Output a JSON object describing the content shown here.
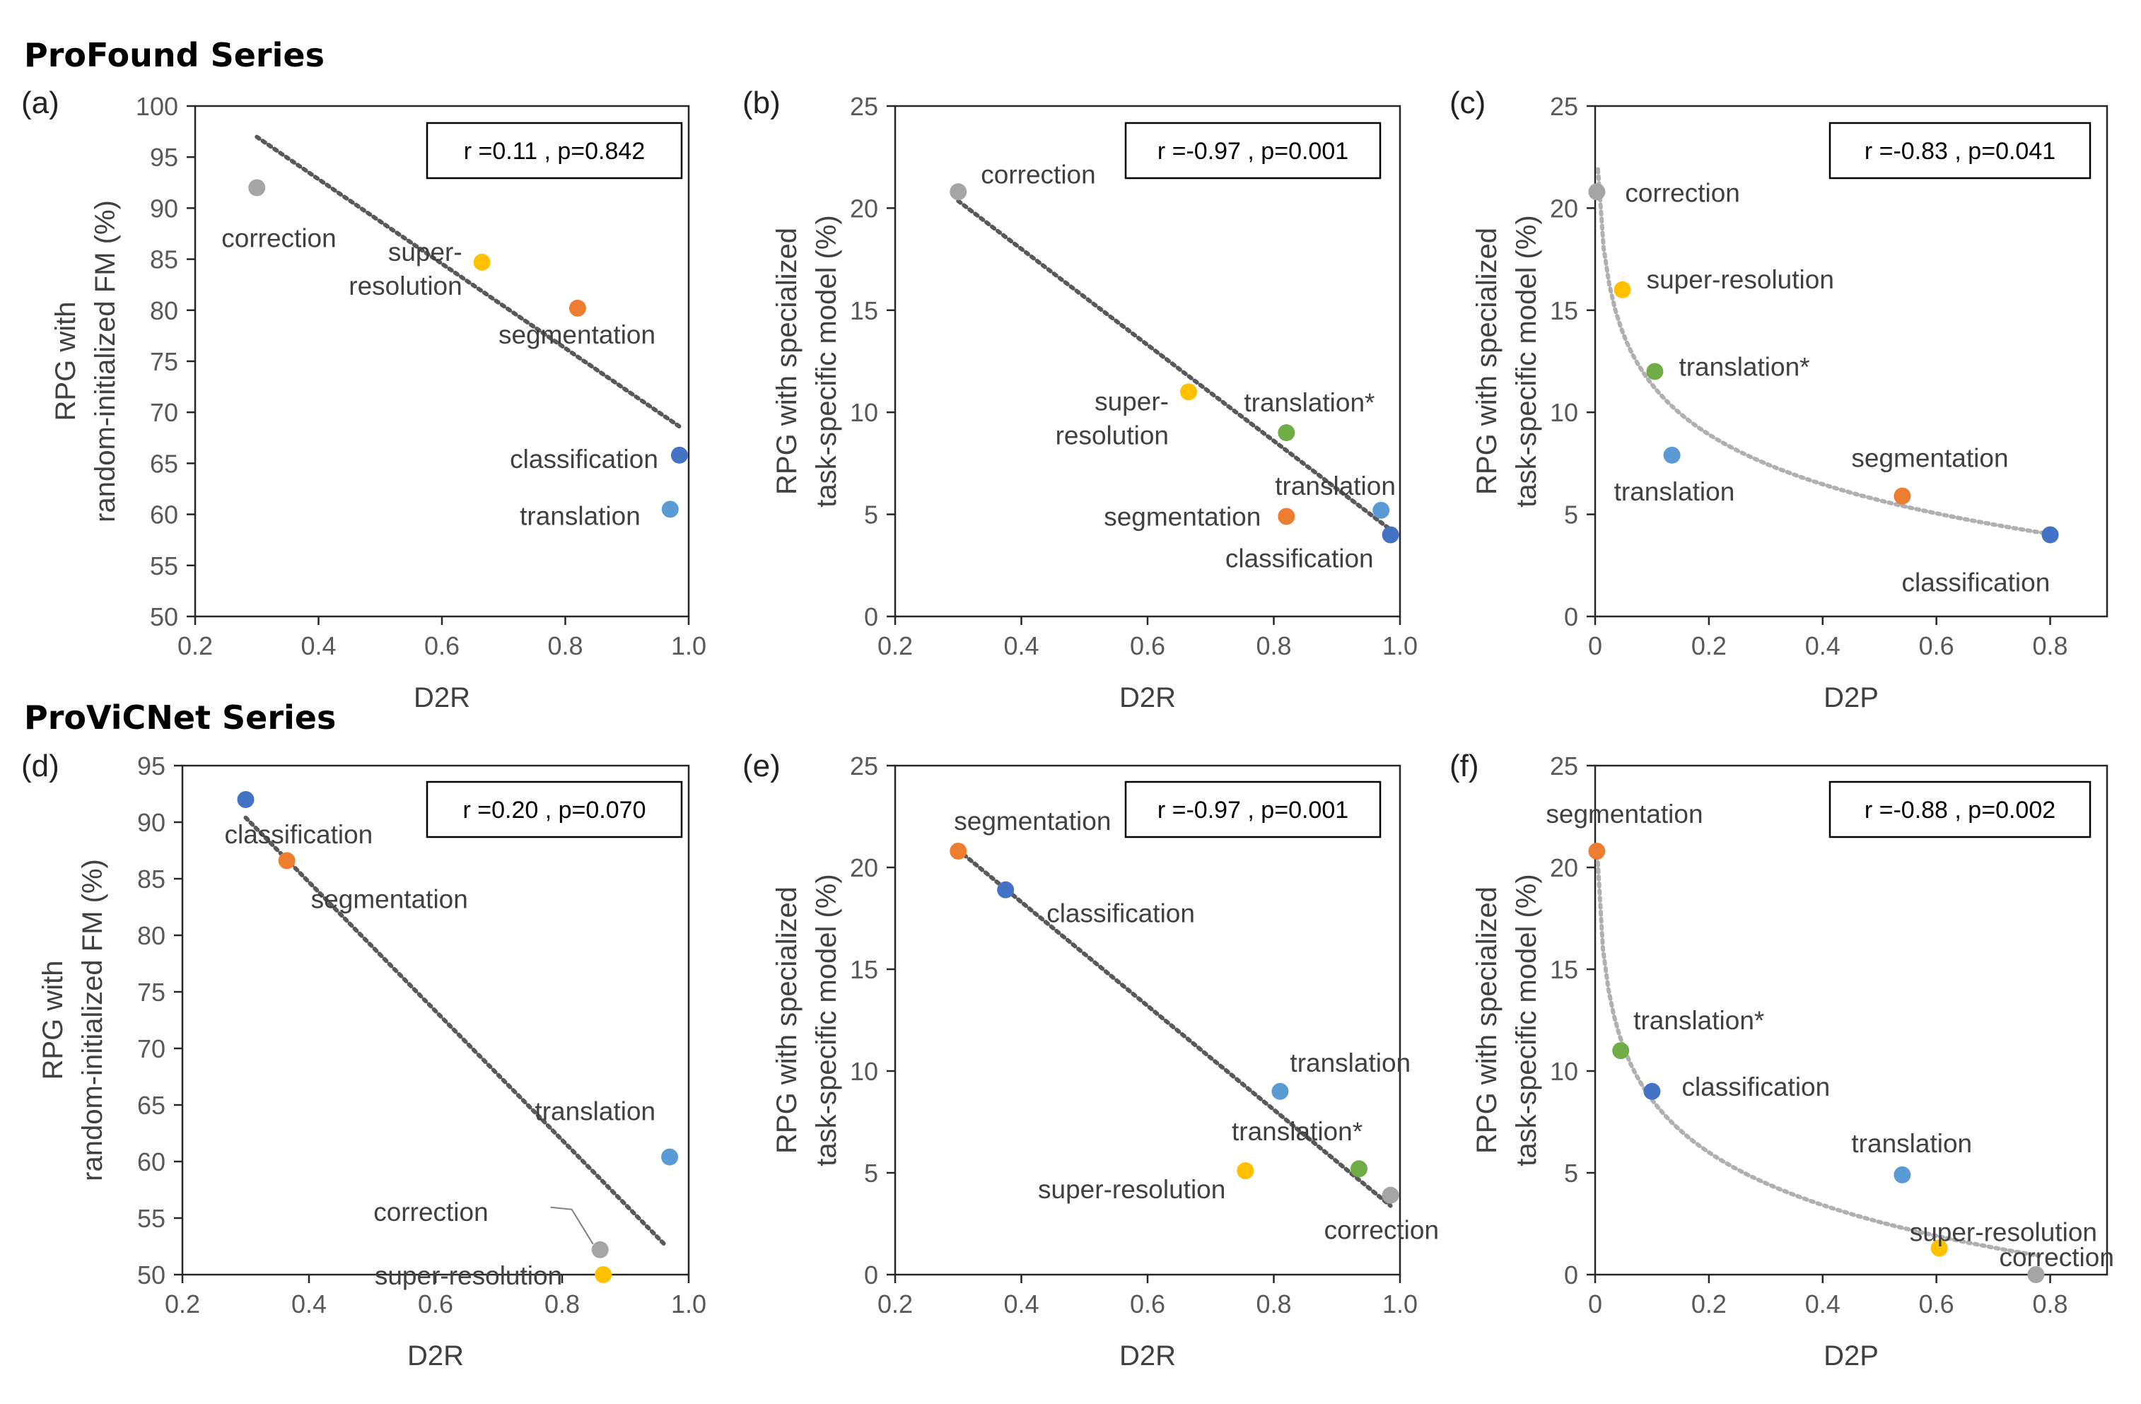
{
  "series_titles": [
    "ProFound Series",
    "ProViCNet Series"
  ],
  "colors": {
    "correction": "#a5a5a5",
    "super-resolution": "#ffc000",
    "segmentation": "#ed7d31",
    "classification": "#4472c4",
    "translation": "#5b9bd5",
    "translation*": "#70ad47",
    "trend_dark": "#595959",
    "trend_light": "#b0b0b0",
    "axis": "#262626"
  },
  "chart_data": [
    {
      "id": "a",
      "label": "(a)",
      "type": "scatter",
      "xlabel": "D2R",
      "ylabel": [
        "RPG with",
        "random-initialized FM (%)"
      ],
      "xlim": [
        0.2,
        1.0
      ],
      "xticks": [
        "0.2",
        "0.4",
        "0.6",
        "0.8",
        "1.0"
      ],
      "ylim": [
        50,
        100
      ],
      "yticks": [
        "50",
        "55",
        "60",
        "65",
        "70",
        "75",
        "80",
        "85",
        "90",
        "95",
        "100"
      ],
      "stat": "r =0.11 , p=0.842",
      "trend": {
        "kind": "poly",
        "coef": [
          -41.41,
          109.4
        ],
        "x0": 0.3,
        "x1": 0.985,
        "style": "dark"
      },
      "points": [
        {
          "name": "correction",
          "text": [
            "correction"
          ],
          "x": 0.3,
          "y": 92.0
        },
        {
          "name": "super-resolution",
          "text": [
            "super-",
            "resolution"
          ],
          "x": 0.665,
          "y": 84.7
        },
        {
          "name": "segmentation",
          "text": [
            "segmentation"
          ],
          "x": 0.82,
          "y": 80.2
        },
        {
          "name": "classification",
          "text": [
            "classification"
          ],
          "x": 0.985,
          "y": 65.8
        },
        {
          "name": "translation",
          "text": [
            "translation"
          ],
          "x": 0.97,
          "y": 60.5
        }
      ]
    },
    {
      "id": "b",
      "label": "(b)",
      "type": "scatter",
      "xlabel": "D2R",
      "ylabel": [
        "RPG with specialized",
        "task-specific model (%)"
      ],
      "xlim": [
        0.2,
        1.0
      ],
      "xticks": [
        "0.2",
        "0.4",
        "0.6",
        "0.8",
        "1.0"
      ],
      "ylim": [
        0,
        25
      ],
      "yticks": [
        "0",
        "5",
        "10",
        "15",
        "20",
        "25"
      ],
      "stat": "r =-0.97 , p=0.001",
      "trend": {
        "kind": "poly",
        "coef": [
          -23.5,
          27.4
        ],
        "x0": 0.3,
        "x1": 0.985,
        "style": "dark"
      },
      "points": [
        {
          "name": "correction",
          "text": [
            "correction"
          ],
          "x": 0.3,
          "y": 20.8
        },
        {
          "name": "super-resolution",
          "text": [
            "super-",
            "resolution"
          ],
          "x": 0.665,
          "y": 11.0
        },
        {
          "name": "translation*",
          "text": [
            "translation*"
          ],
          "x": 0.82,
          "y": 9.0
        },
        {
          "name": "segmentation",
          "text": [
            "segmentation"
          ],
          "x": 0.82,
          "y": 4.9
        },
        {
          "name": "translation",
          "text": [
            "translation"
          ],
          "x": 0.97,
          "y": 5.2
        },
        {
          "name": "classification",
          "text": [
            "classification"
          ],
          "x": 0.985,
          "y": 4.0
        }
      ]
    },
    {
      "id": "c",
      "label": "(c)",
      "type": "scatter",
      "xlabel": "D2P",
      "ylabel": [
        "RPG with specialized",
        "task-specific model (%)"
      ],
      "xlim": [
        0,
        0.9
      ],
      "xticks": [
        "0",
        "0.2",
        "0.4",
        "0.6",
        "0.8"
      ],
      "ylim": [
        0,
        25
      ],
      "yticks": [
        "0",
        "5",
        "10",
        "15",
        "20",
        "25"
      ],
      "stat": "r =-0.83 , p=0.041",
      "trend": {
        "kind": "log",
        "coef": [
          -3.52,
          3.25
        ],
        "x0": 0.005,
        "x1": 0.8,
        "style": "light"
      },
      "points": [
        {
          "name": "correction",
          "text": [
            "correction"
          ],
          "x": 0.003,
          "y": 20.8
        },
        {
          "name": "super-resolution",
          "text": [
            "super-resolution"
          ],
          "x": 0.048,
          "y": 16.0
        },
        {
          "name": "translation*",
          "text": [
            "translation*"
          ],
          "x": 0.105,
          "y": 12.0
        },
        {
          "name": "translation",
          "text": [
            "translation"
          ],
          "x": 0.135,
          "y": 7.9
        },
        {
          "name": "segmentation",
          "text": [
            "segmentation"
          ],
          "x": 0.54,
          "y": 5.9
        },
        {
          "name": "classification",
          "text": [
            "classification"
          ],
          "x": 0.8,
          "y": 4.0
        }
      ]
    },
    {
      "id": "d",
      "label": "(d)",
      "type": "scatter",
      "xlabel": "D2R",
      "ylabel": [
        "RPG with",
        "random-initialized FM (%)"
      ],
      "xlim": [
        0.2,
        1.0
      ],
      "xticks": [
        "0.2",
        "0.4",
        "0.6",
        "0.8",
        "1.0"
      ],
      "ylim": [
        50,
        95
      ],
      "yticks": [
        "50",
        "55",
        "60",
        "65",
        "70",
        "75",
        "80",
        "85",
        "90",
        "95"
      ],
      "stat": "r =0.20 , p=0.070",
      "trend": {
        "kind": "poly",
        "coef": [
          -57.0,
          107.5
        ],
        "x0": 0.3,
        "x1": 0.965,
        "style": "dark"
      },
      "points": [
        {
          "name": "classification",
          "text": [
            "classification"
          ],
          "x": 0.3,
          "y": 92.0
        },
        {
          "name": "segmentation",
          "text": [
            "segmentation"
          ],
          "x": 0.365,
          "y": 86.6
        },
        {
          "name": "translation",
          "text": [
            "translation"
          ],
          "x": 0.97,
          "y": 60.4
        },
        {
          "name": "correction",
          "text": [
            "correction"
          ],
          "x": 0.86,
          "y": 52.2
        },
        {
          "name": "super-resolution",
          "text": [
            "super-resolution"
          ],
          "x": 0.865,
          "y": 50.0
        }
      ]
    },
    {
      "id": "e",
      "label": "(e)",
      "type": "scatter",
      "xlabel": "D2R",
      "ylabel": [
        "RPG with specialized",
        "task-specific model (%)"
      ],
      "xlim": [
        0.2,
        1.0
      ],
      "xticks": [
        "0.2",
        "0.4",
        "0.6",
        "0.8",
        "1.0"
      ],
      "ylim": [
        0,
        25
      ],
      "yticks": [
        "0",
        "5",
        "10",
        "15",
        "20",
        "25"
      ],
      "stat": "r =-0.97 , p=0.001",
      "trend": {
        "kind": "poly",
        "coef": [
          -25.5,
          28.5
        ],
        "x0": 0.3,
        "x1": 0.985,
        "style": "dark"
      },
      "points": [
        {
          "name": "segmentation",
          "text": [
            "segmentation"
          ],
          "x": 0.3,
          "y": 20.8
        },
        {
          "name": "classification",
          "text": [
            "classification"
          ],
          "x": 0.375,
          "y": 18.9
        },
        {
          "name": "translation",
          "text": [
            "translation"
          ],
          "x": 0.81,
          "y": 9.0
        },
        {
          "name": "super-resolution",
          "text": [
            "super-resolution"
          ],
          "x": 0.755,
          "y": 5.1
        },
        {
          "name": "translation*",
          "text": [
            "translation*"
          ],
          "x": 0.935,
          "y": 5.2
        },
        {
          "name": "correction",
          "text": [
            "correction"
          ],
          "x": 0.985,
          "y": 3.9
        }
      ]
    },
    {
      "id": "f",
      "label": "(f)",
      "type": "scatter",
      "xlabel": "D2P",
      "ylabel": [
        "RPG with specialized",
        "task-specific model (%)"
      ],
      "xlim": [
        0,
        0.9
      ],
      "xticks": [
        "0",
        "0.2",
        "0.4",
        "0.6",
        "0.8"
      ],
      "ylim": [
        0,
        25
      ],
      "yticks": [
        "0",
        "5",
        "10",
        "15",
        "20",
        "25"
      ],
      "stat": "r =-0.88 , p=0.002",
      "trend": {
        "kind": "log",
        "coef": [
          -3.73,
          0.0
        ],
        "x0": 0.004,
        "x1": 0.78,
        "style": "light"
      },
      "points": [
        {
          "name": "segmentation",
          "text": [
            "segmentation"
          ],
          "x": 0.003,
          "y": 20.8
        },
        {
          "name": "translation*",
          "text": [
            "translation*"
          ],
          "x": 0.045,
          "y": 11.0
        },
        {
          "name": "classification",
          "text": [
            "classification"
          ],
          "x": 0.1,
          "y": 9.0
        },
        {
          "name": "translation",
          "text": [
            "translation"
          ],
          "x": 0.54,
          "y": 4.9
        },
        {
          "name": "super-resolution",
          "text": [
            "super-resolution"
          ],
          "x": 0.605,
          "y": 1.3
        },
        {
          "name": "correction",
          "text": [
            "correction"
          ],
          "x": 0.775,
          "y": 0.0
        }
      ]
    }
  ]
}
